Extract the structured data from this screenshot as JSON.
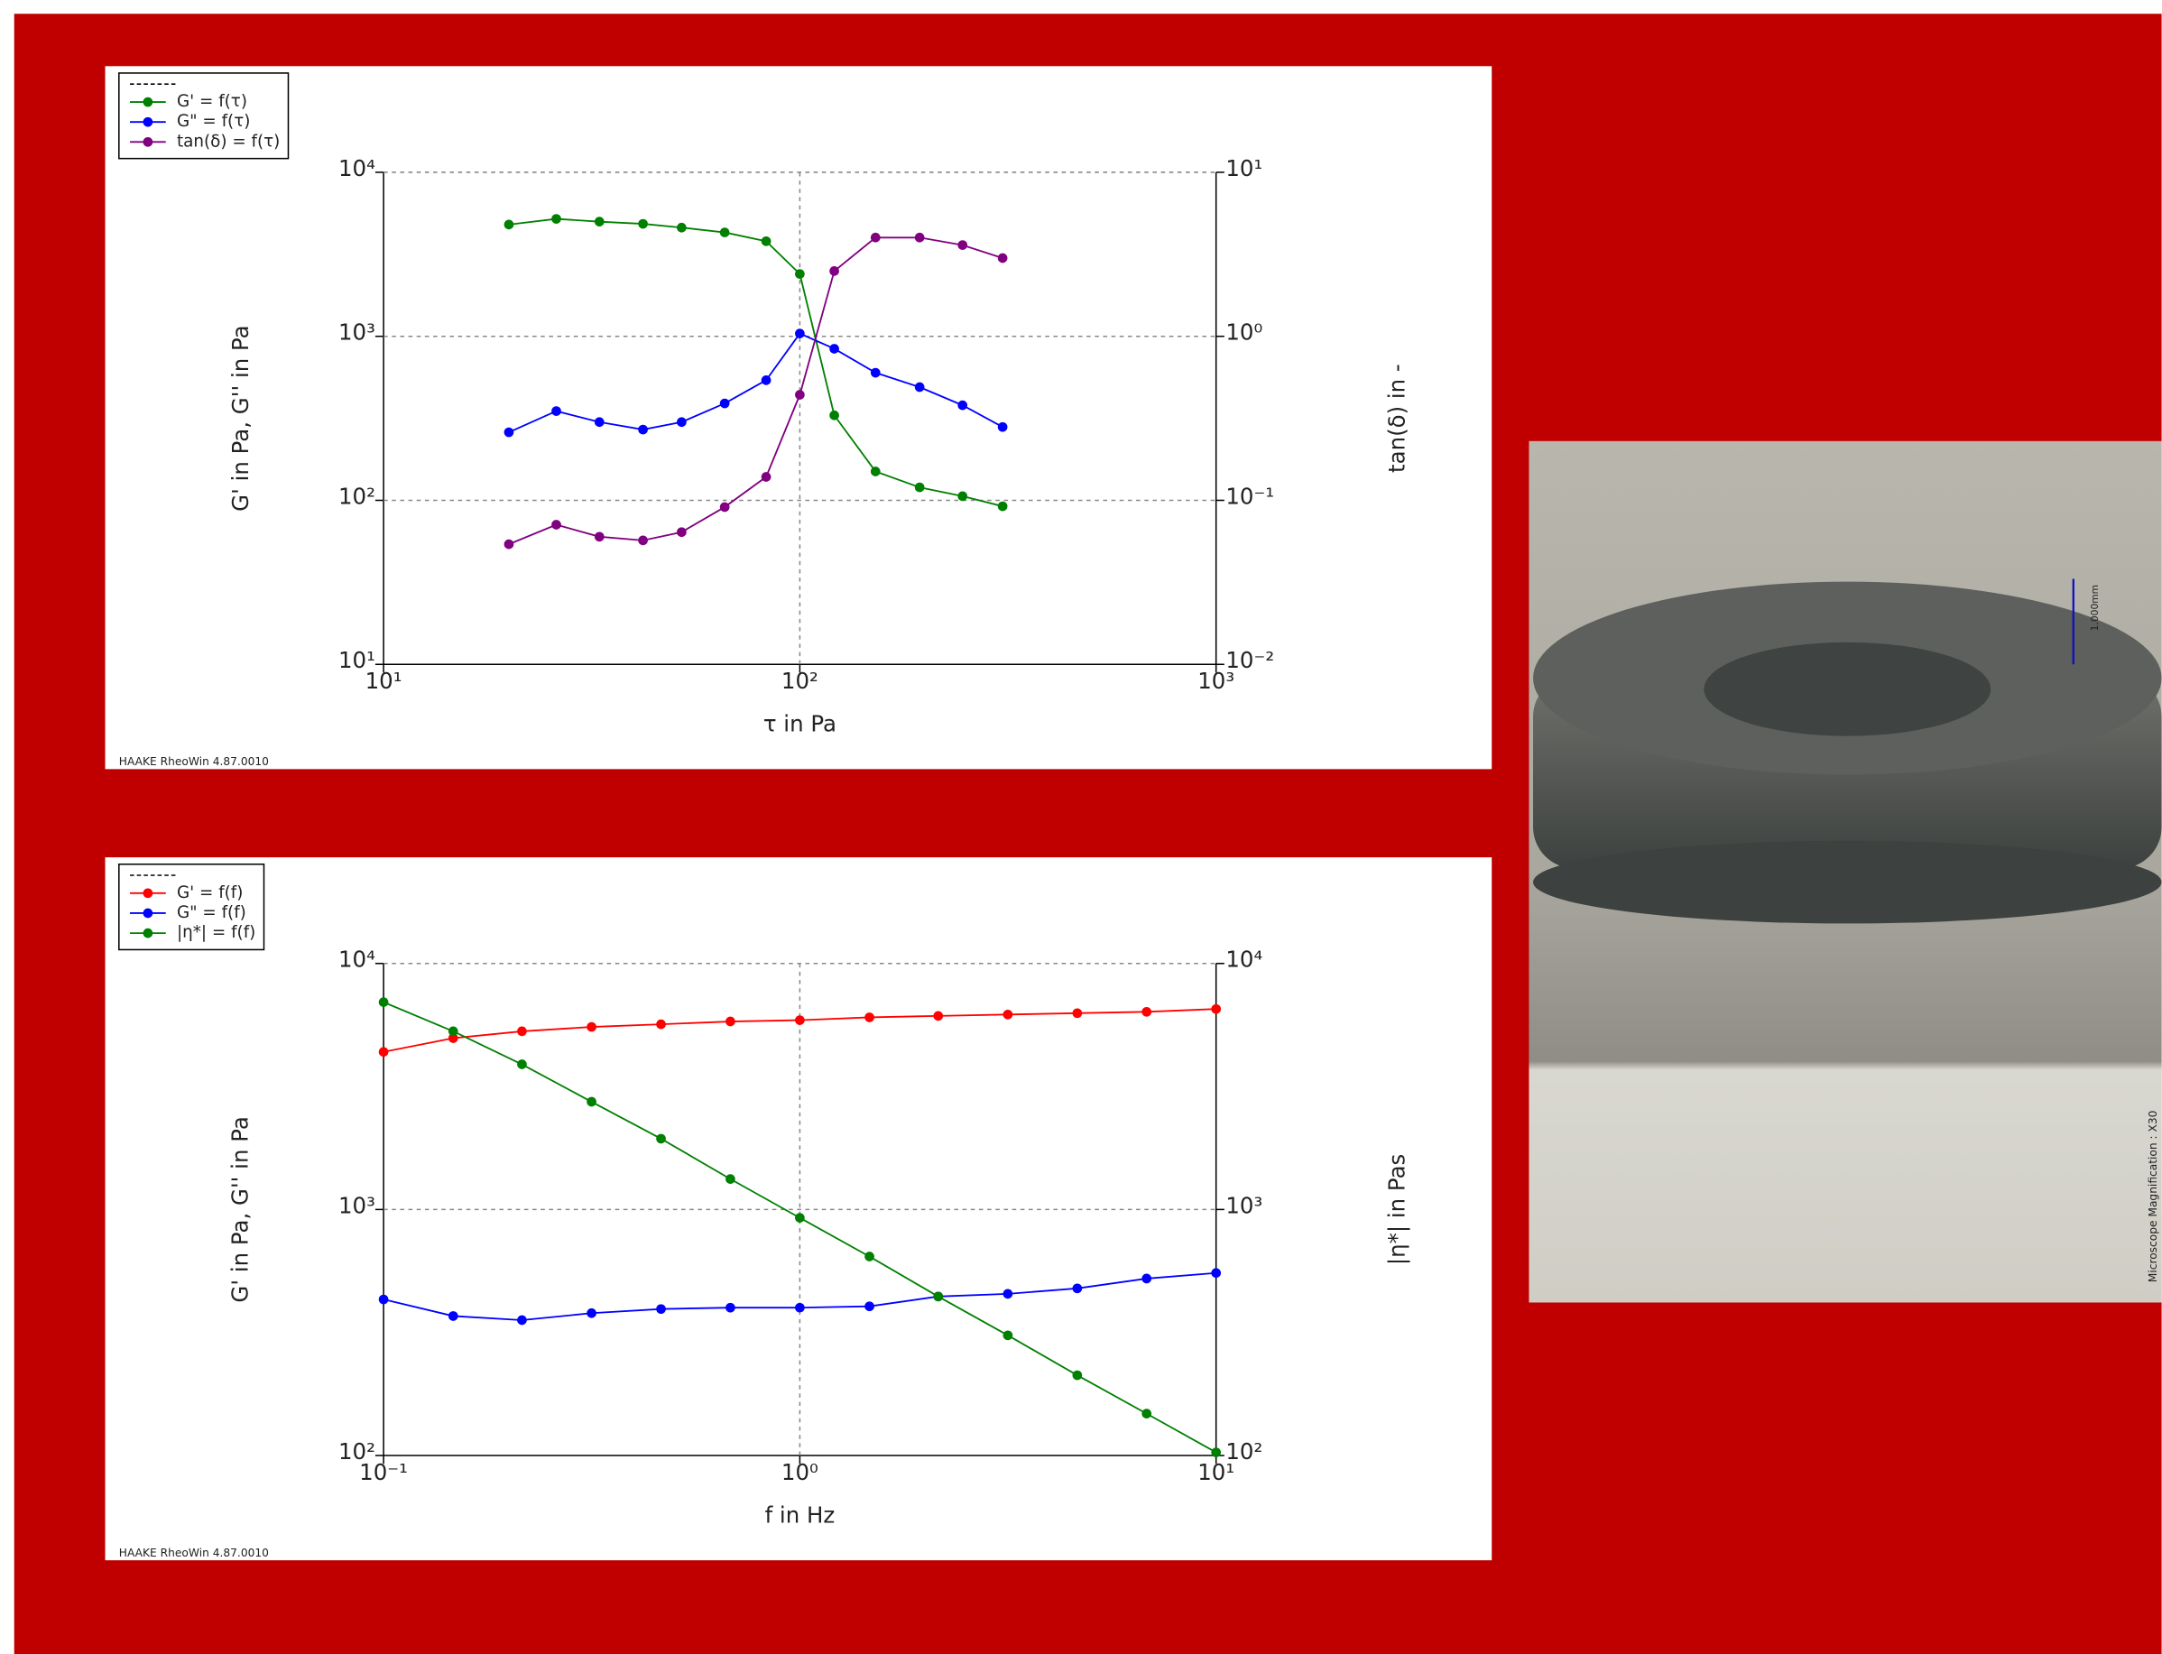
{
  "chart_data": [
    {
      "type": "line",
      "x_label": "τ in Pa",
      "y_label": "G' in Pa, G'' in Pa",
      "y2_label": "tan(δ) in -",
      "footer": "HAAKE RheoWin 4.87.0010",
      "log_x": true,
      "log_y": true,
      "grid": true,
      "legend": "upper-left",
      "x": [
        20,
        26,
        33,
        42,
        52,
        66,
        83,
        100,
        121,
        152,
        194,
        246,
        307
      ],
      "series": [
        {
          "name": "G' = f(τ)",
          "color": "#008000",
          "values": [
            4800,
            5200,
            5000,
            4850,
            4600,
            4300,
            3800,
            2400,
            330,
            150,
            120,
            106,
            92
          ]
        },
        {
          "name": "G\" = f(τ)",
          "color": "#0000ff",
          "values": [
            260,
            350,
            300,
            270,
            300,
            390,
            540,
            1040,
            840,
            600,
            490,
            380,
            280
          ]
        },
        {
          "name": "tan(δ) = f(τ)",
          "color": "#800080",
          "axis": "y2",
          "values": [
            0.054,
            0.071,
            0.06,
            0.057,
            0.064,
            0.091,
            0.139,
            0.44,
            2.5,
            4.0,
            4.0,
            3.6,
            3.0
          ]
        }
      ],
      "xlim": [
        10,
        1000
      ],
      "xticks": [
        {
          "value": 10,
          "label": "10¹"
        },
        {
          "value": 100,
          "label": "10²"
        },
        {
          "value": 1000,
          "label": "10³"
        }
      ],
      "ylim": [
        10,
        10000
      ],
      "yticks": [
        {
          "value": 10,
          "label": "10¹"
        },
        {
          "value": 100,
          "label": "10²"
        },
        {
          "value": 1000,
          "label": "10³"
        },
        {
          "value": 10000,
          "label": "10⁴"
        }
      ],
      "y2lim": [
        0.01,
        10
      ],
      "y2ticks": [
        {
          "value": 0.01,
          "label": "10⁻²"
        },
        {
          "value": 0.1,
          "label": "10⁻¹"
        },
        {
          "value": 1,
          "label": "10⁰"
        },
        {
          "value": 10,
          "label": "10¹"
        }
      ]
    },
    {
      "type": "line",
      "x_label": "f in Hz",
      "y_label": "G' in Pa, G'' in Pa",
      "y2_label": "|η*| in Pas",
      "footer": "HAAKE RheoWin 4.87.0010",
      "log_x": true,
      "log_y": true,
      "grid": true,
      "legend": "upper-left",
      "x": [
        0.1,
        0.147,
        0.215,
        0.316,
        0.464,
        0.681,
        1,
        1.47,
        2.15,
        3.16,
        4.64,
        6.81,
        10
      ],
      "series": [
        {
          "name": "G' = f(f)",
          "color": "#ff0000",
          "values": [
            4370,
            4970,
            5300,
            5520,
            5660,
            5810,
            5880,
            6040,
            6120,
            6200,
            6280,
            6360,
            6530
          ]
        },
        {
          "name": "G\" = f(f)",
          "color": "#0000ff",
          "values": [
            431,
            369,
            355,
            379,
            394,
            399,
            399,
            404,
            443,
            454,
            478,
            524,
            552
          ]
        },
        {
          "name": "|η*| = f(f)",
          "color": "#008000",
          "axis": "y2",
          "values": [
            6960,
            5300,
            3890,
            2740,
            1940,
            1330,
            925,
            644,
            443,
            308,
            212,
            148,
            103
          ]
        }
      ],
      "xlim": [
        0.1,
        10
      ],
      "xticks": [
        {
          "value": 0.1,
          "label": "10⁻¹"
        },
        {
          "value": 1,
          "label": "10⁰"
        },
        {
          "value": 10,
          "label": "10¹"
        }
      ],
      "ylim": [
        100,
        10000
      ],
      "yticks": [
        {
          "value": 100,
          "label": "10²"
        },
        {
          "value": 1000,
          "label": "10³"
        },
        {
          "value": 10000,
          "label": "10⁴"
        }
      ],
      "y2lim": [
        100,
        10000
      ],
      "y2ticks": [
        {
          "value": 100,
          "label": "10²"
        },
        {
          "value": 1000,
          "label": "10³"
        },
        {
          "value": 10000,
          "label": "10⁴"
        }
      ]
    }
  ],
  "image": {
    "scale_label": "1.000mm",
    "caption": "Microscope Magnification : X30"
  }
}
